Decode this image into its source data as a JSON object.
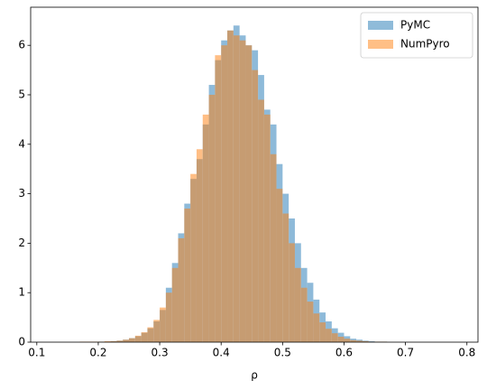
{
  "chart_data": {
    "type": "histogram",
    "xlabel": "ρ",
    "bins": [
      0.15,
      0.16,
      0.17,
      0.18,
      0.19,
      0.2,
      0.21,
      0.22,
      0.23,
      0.24,
      0.25,
      0.26,
      0.27,
      0.28,
      0.29,
      0.3,
      0.31,
      0.32,
      0.33,
      0.34,
      0.35,
      0.36,
      0.37,
      0.38,
      0.39,
      0.4,
      0.41,
      0.42,
      0.43,
      0.44,
      0.45,
      0.46,
      0.47,
      0.48,
      0.49,
      0.5,
      0.51,
      0.52,
      0.53,
      0.54,
      0.55,
      0.56,
      0.57,
      0.58,
      0.59,
      0.6,
      0.61,
      0.62,
      0.63,
      0.64,
      0.65,
      0.66,
      0.67,
      0.68,
      0.69,
      0.7,
      0.71,
      0.72,
      0.73
    ],
    "series": [
      {
        "name": "PyMC",
        "color": "#1f77b4",
        "alpha": 0.5,
        "values": [
          0,
          0,
          0,
          0,
          0,
          0.01,
          0.01,
          0.02,
          0.03,
          0.05,
          0.08,
          0.12,
          0.19,
          0.28,
          0.42,
          0.65,
          1.1,
          1.6,
          2.2,
          2.8,
          3.3,
          3.7,
          4.4,
          5.2,
          5.7,
          6.1,
          6.3,
          6.4,
          6.2,
          6.0,
          5.9,
          5.4,
          4.7,
          4.4,
          3.6,
          3.0,
          2.5,
          2.0,
          1.5,
          1.2,
          0.86,
          0.6,
          0.42,
          0.28,
          0.19,
          0.12,
          0.07,
          0.05,
          0.03,
          0.02,
          0.01,
          0.01,
          0,
          0,
          0,
          0,
          0,
          0
        ]
      },
      {
        "name": "NumPyro",
        "color": "#ff7f0e",
        "alpha": 0.5,
        "values": [
          0,
          0,
          0.01,
          0.01,
          0.01,
          0.01,
          0.02,
          0.02,
          0.03,
          0.05,
          0.08,
          0.13,
          0.2,
          0.3,
          0.45,
          0.7,
          1.0,
          1.5,
          2.1,
          2.7,
          3.4,
          3.9,
          4.6,
          5.0,
          5.8,
          6.0,
          6.3,
          6.2,
          6.1,
          6.0,
          5.5,
          4.9,
          4.6,
          3.8,
          3.1,
          2.6,
          2.0,
          1.5,
          1.1,
          0.82,
          0.58,
          0.4,
          0.27,
          0.18,
          0.11,
          0.07,
          0.04,
          0.03,
          0.02,
          0.01,
          0.01,
          0.01,
          0,
          0,
          0,
          0,
          0,
          0
        ]
      }
    ],
    "xlim": [
      0.09,
      0.818
    ],
    "ylim": [
      0,
      6.77
    ],
    "xticks": [
      0.1,
      0.2,
      0.3,
      0.4,
      0.5,
      0.6,
      0.7,
      0.8
    ],
    "yticks": [
      0,
      1,
      2,
      3,
      4,
      5,
      6
    ],
    "legend": "upper right"
  }
}
